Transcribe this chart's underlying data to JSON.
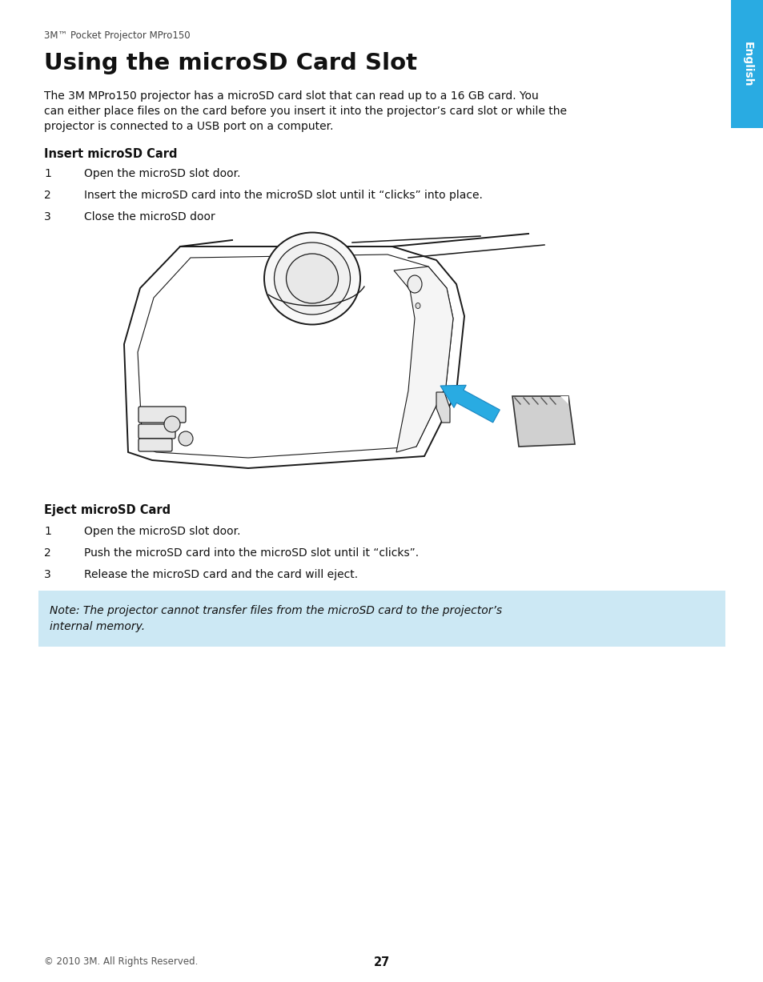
{
  "bg_color": "#ffffff",
  "tab_color": "#29abe2",
  "tab_text": "English",
  "tab_text_color": "#ffffff",
  "header_small": "3M™ Pocket Projector MPro150",
  "title": "Using the microSD Card Slot",
  "intro": "The 3M MPro150 projector has a microSD card slot that can read up to a 16 GB card. You\ncan either place files on the card before you insert it into the projector’s card slot or while the\nprojector is connected to a USB port on a computer.",
  "section1_title": "Insert microSD Card",
  "section1_steps": [
    "Open the microSD slot door.",
    "Insert the microSD card into the microSD slot until it “clicks” into place.",
    "Close the microSD door"
  ],
  "section2_title": "Eject microSD Card",
  "section2_steps": [
    "Open the microSD slot door.",
    "Push the microSD card into the microSD slot until it “clicks”.",
    "Release the microSD card and the card will eject."
  ],
  "note_bg": "#cce8f4",
  "note_text_line1": "Note: The projector cannot transfer files from the microSD card to the projector’s",
  "note_text_line2": "internal memory.",
  "footer_left": "© 2010 3M. All Rights Reserved.",
  "footer_page": "27",
  "arrow_color": "#29abe2",
  "line_color": "#1a1a1a",
  "body_fill": "#ffffff",
  "card_fill": "#d0d0d0"
}
